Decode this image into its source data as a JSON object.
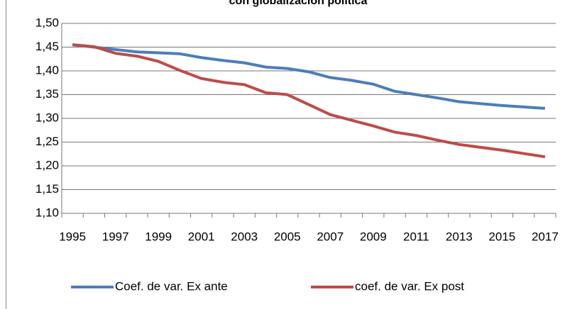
{
  "chart_data": {
    "type": "line",
    "title": "con globalización política",
    "categories": [
      "1995",
      null,
      "1997",
      null,
      "1999",
      null,
      "2001",
      null,
      "2003",
      null,
      "2005",
      null,
      "2007",
      null,
      "2009",
      null,
      "2011",
      null,
      "2013",
      null,
      "2015",
      null,
      "2017"
    ],
    "series": [
      {
        "name": "Coef. de var. Ex ante",
        "color": "#4a7ebb",
        "values": [
          1.455,
          1.45,
          1.445,
          1.44,
          1.438,
          1.436,
          1.428,
          1.422,
          1.417,
          1.408,
          1.405,
          1.398,
          1.386,
          1.38,
          1.372,
          1.357,
          1.35,
          1.343,
          1.335,
          1.331,
          1.327,
          1.324,
          1.321
        ]
      },
      {
        "name": "coef. de var. Ex post",
        "color": "#be4b48",
        "values": [
          1.455,
          1.451,
          1.437,
          1.431,
          1.42,
          1.401,
          1.384,
          1.376,
          1.371,
          1.354,
          1.35,
          1.329,
          1.308,
          1.296,
          1.284,
          1.271,
          1.264,
          1.254,
          1.245,
          1.239,
          1.233,
          1.226,
          1.219
        ]
      }
    ],
    "ylim": [
      1.1,
      1.5
    ],
    "yticks": [
      {
        "value": 1.1,
        "label": "1,10"
      },
      {
        "value": 1.15,
        "label": "1,15"
      },
      {
        "value": 1.2,
        "label": "1,20"
      },
      {
        "value": 1.25,
        "label": "1,25"
      },
      {
        "value": 1.3,
        "label": "1,30"
      },
      {
        "value": 1.35,
        "label": "1,35"
      },
      {
        "value": 1.4,
        "label": "1,40"
      },
      {
        "value": 1.45,
        "label": "1,45"
      },
      {
        "value": 1.5,
        "label": "1,50"
      }
    ],
    "grid": true,
    "legend": "bottom"
  }
}
